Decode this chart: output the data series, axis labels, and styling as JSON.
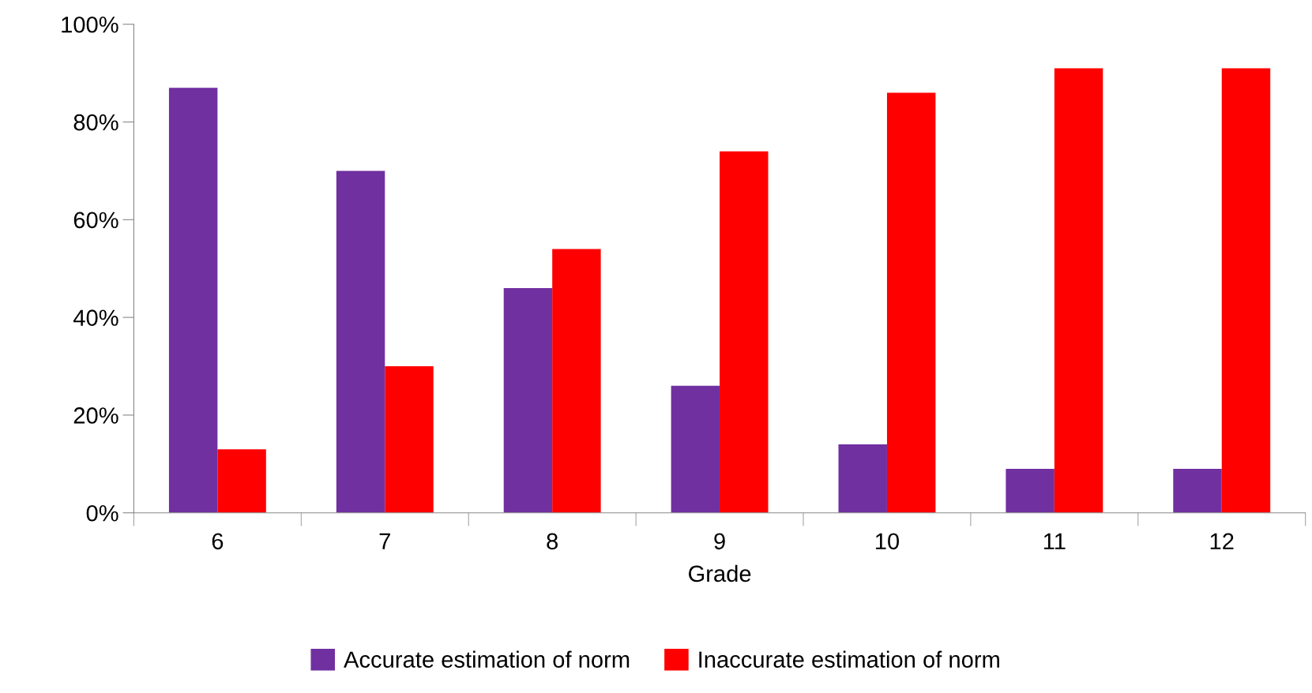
{
  "chart_data": {
    "type": "bar",
    "xlabel": "Grade",
    "categories": [
      "6",
      "7",
      "8",
      "9",
      "10",
      "11",
      "12"
    ],
    "series": [
      {
        "name": "Accurate estimation of norm",
        "color": "#7030a0",
        "values": [
          0.87,
          0.7,
          0.46,
          0.26,
          0.14,
          0.09,
          0.09
        ]
      },
      {
        "name": "Inaccurate estimation of norm",
        "color": "#ff0000",
        "values": [
          0.13,
          0.3,
          0.54,
          0.74,
          0.86,
          0.91,
          0.91
        ]
      }
    ],
    "ylim": [
      0,
      1
    ],
    "yticks": [
      {
        "value": 0,
        "label": "0%"
      },
      {
        "value": 0.2,
        "label": "20%"
      },
      {
        "value": 0.4,
        "label": "40%"
      },
      {
        "value": 0.6,
        "label": "60%"
      },
      {
        "value": 0.8,
        "label": "80%"
      },
      {
        "value": 1,
        "label": "100%"
      }
    ],
    "grid": false,
    "legend": "bottom"
  }
}
